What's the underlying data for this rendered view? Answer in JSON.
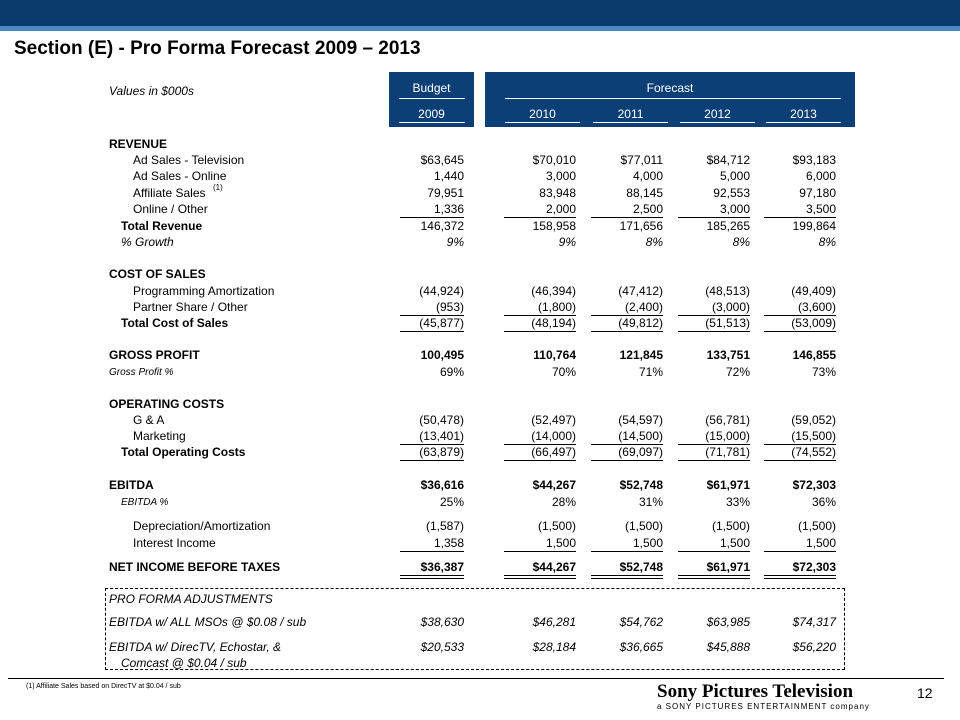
{
  "title": "Section (E) - Pro Forma Forecast 2009 – 2013",
  "values_label": "Values in $000s",
  "header": {
    "budget": "Budget",
    "forecast": "Forecast",
    "years": [
      "2009",
      "2010",
      "2011",
      "2012",
      "2013"
    ]
  },
  "colors": {
    "header_bg": "#0d3f77",
    "top_bar": "#0a3a6b",
    "top_stripe": "#4f86c6"
  },
  "rows": {
    "revenue": {
      "label": "REVENUE"
    },
    "ad_tv": {
      "label": "Ad Sales - Television",
      "values": [
        "$63,645",
        "$70,010",
        "$77,011",
        "$84,712",
        "$93,183"
      ]
    },
    "ad_online": {
      "label": "Ad Sales - Online",
      "values": [
        "1,440",
        "3,000",
        "4,000",
        "5,000",
        "6,000"
      ]
    },
    "affiliate": {
      "label": "Affiliate Sales",
      "sup": "(1)",
      "values": [
        "79,951",
        "83,948",
        "88,145",
        "92,553",
        "97,180"
      ]
    },
    "online_other": {
      "label": "Online / Other",
      "values": [
        "1,336",
        "2,000",
        "2,500",
        "3,000",
        "3,500"
      ]
    },
    "total_revenue": {
      "label": "Total Revenue",
      "values": [
        "146,372",
        "158,958",
        "171,656",
        "185,265",
        "199,864"
      ]
    },
    "growth": {
      "label": "% Growth",
      "values": [
        "9%",
        "9%",
        "8%",
        "8%",
        "8%"
      ]
    },
    "cos": {
      "label": "COST OF SALES"
    },
    "prog_amort": {
      "label": "Programming Amortization",
      "values": [
        "(44,924)",
        "(46,394)",
        "(47,412)",
        "(48,513)",
        "(49,409)"
      ]
    },
    "partner_share": {
      "label": "Partner Share / Other",
      "values": [
        "(953)",
        "(1,800)",
        "(2,400)",
        "(3,000)",
        "(3,600)"
      ]
    },
    "total_cos": {
      "label": "Total Cost of Sales",
      "values": [
        "(45,877)",
        "(48,194)",
        "(49,812)",
        "(51,513)",
        "(53,009)"
      ]
    },
    "gross_profit": {
      "label": "GROSS PROFIT",
      "values": [
        "100,495",
        "110,764",
        "121,845",
        "133,751",
        "146,855"
      ]
    },
    "gross_pct": {
      "label": "Gross Profit %",
      "values": [
        "69%",
        "70%",
        "71%",
        "72%",
        "73%"
      ]
    },
    "opex": {
      "label": "OPERATING COSTS"
    },
    "ga": {
      "label": "G & A",
      "values": [
        "(50,478)",
        "(52,497)",
        "(54,597)",
        "(56,781)",
        "(59,052)"
      ]
    },
    "marketing": {
      "label": "Marketing",
      "values": [
        "(13,401)",
        "(14,000)",
        "(14,500)",
        "(15,000)",
        "(15,500)"
      ]
    },
    "total_opex": {
      "label": "Total Operating Costs",
      "values": [
        "(63,879)",
        "(66,497)",
        "(69,097)",
        "(71,781)",
        "(74,552)"
      ]
    },
    "ebitda": {
      "label": "EBITDA",
      "values": [
        "$36,616",
        "$44,267",
        "$52,748",
        "$61,971",
        "$72,303"
      ]
    },
    "ebitda_pct": {
      "label": "EBITDA %",
      "values": [
        "25%",
        "28%",
        "31%",
        "33%",
        "36%"
      ]
    },
    "dep_amort": {
      "label": "Depreciation/Amortization",
      "values": [
        "(1,587)",
        "(1,500)",
        "(1,500)",
        "(1,500)",
        "(1,500)"
      ]
    },
    "interest": {
      "label": "Interest Income",
      "values": [
        "1,358",
        "1,500",
        "1,500",
        "1,500",
        "1,500"
      ]
    },
    "net_income": {
      "label": "NET INCOME BEFORE TAXES",
      "values": [
        "$36,387",
        "$44,267",
        "$52,748",
        "$61,971",
        "$72,303"
      ]
    }
  },
  "adjustments": {
    "heading": "PRO FORMA ADJUSTMENTS",
    "msos": {
      "label": "EBITDA w/ ALL MSOs @ $0.08 / sub",
      "values": [
        "$38,630",
        "$46,281",
        "$54,762",
        "$63,985",
        "$74,317"
      ]
    },
    "directv": {
      "label": "EBITDA w/ DirecTV, Echostar, &",
      "label2": "Comcast @ $0.04 / sub",
      "values": [
        "$20,533",
        "$28,184",
        "$36,665",
        "$45,888",
        "$56,220"
      ]
    }
  },
  "footnote": "(1) Affiliate Sales based on DirecTV at $0.04 / sub",
  "brand": "Sony Pictures Television",
  "brand_sub": "a SONY PICTURES ENTERTAINMENT company",
  "page_number": "12"
}
